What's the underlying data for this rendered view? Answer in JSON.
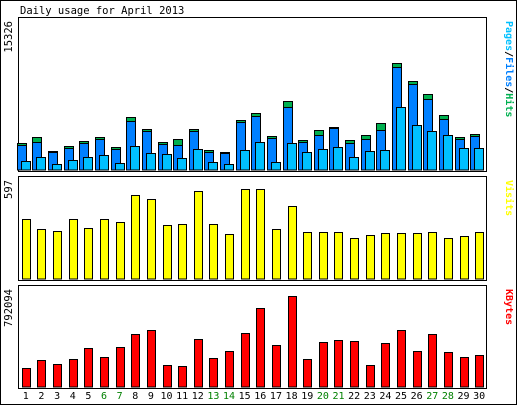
{
  "title": "Daily usage for April 2013",
  "colors": {
    "border": "#000000",
    "panel_bg": "#ffffff",
    "hits": "#00b050",
    "files": "#0080ff",
    "pages": "#00c0ff",
    "visits": "#ffff00",
    "kbytes": "#ff0000",
    "weekend_label": "#008000",
    "weekday_label": "#000000"
  },
  "chart_data": [
    {
      "type": "bar",
      "panel": "hits-files-pages",
      "ymax_label": "15326",
      "ylim": [
        0,
        15326
      ],
      "legend": [
        {
          "text": "Pages",
          "color": "#00c0ff"
        },
        {
          "text": "/",
          "color": "#000000"
        },
        {
          "text": "Files",
          "color": "#0080ff"
        },
        {
          "text": "/",
          "color": "#000000"
        },
        {
          "text": "Hits",
          "color": "#00b050"
        }
      ],
      "categories": [
        "1",
        "2",
        "3",
        "4",
        "5",
        "6",
        "7",
        "8",
        "9",
        "10",
        "11",
        "12",
        "13",
        "14",
        "15",
        "16",
        "17",
        "18",
        "19",
        "20",
        "21",
        "22",
        "23",
        "24",
        "25",
        "26",
        "27",
        "28",
        "29",
        "30"
      ],
      "series": [
        {
          "name": "Hits",
          "values": [
            2950,
            3520,
            2050,
            2580,
            3130,
            3560,
            2430,
            5770,
            4390,
            3030,
            3350,
            4470,
            2130,
            1990,
            5400,
            6150,
            3650,
            7420,
            3230,
            4290,
            4590,
            3250,
            3820,
            5040,
            11590,
            9600,
            8240,
            5970,
            3590,
            3840
          ]
        },
        {
          "name": "Files",
          "values": [
            2720,
            2990,
            1970,
            2360,
            2930,
            3310,
            2290,
            5240,
            4160,
            2800,
            2710,
            4190,
            1980,
            1810,
            5160,
            5860,
            3460,
            6850,
            2970,
            3800,
            4480,
            2950,
            3350,
            4330,
            11130,
            9250,
            7630,
            5540,
            3350,
            3710
          ]
        },
        {
          "name": "Pages",
          "values": [
            980,
            1420,
            670,
            1060,
            1400,
            1660,
            780,
            2640,
            1820,
            1680,
            1340,
            2300,
            820,
            650,
            2180,
            3020,
            910,
            2950,
            1980,
            2300,
            2460,
            1430,
            2010,
            2190,
            6760,
            4840,
            4170,
            3800,
            2340,
            2340
          ]
        }
      ]
    },
    {
      "type": "bar",
      "panel": "visits",
      "ymax_label": "597",
      "ylim": [
        0,
        597
      ],
      "legend": [
        {
          "text": "Visits",
          "color": "#ffff00"
        }
      ],
      "categories": [
        "1",
        "2",
        "3",
        "4",
        "5",
        "6",
        "7",
        "8",
        "9",
        "10",
        "11",
        "12",
        "13",
        "14",
        "15",
        "16",
        "17",
        "18",
        "19",
        "20",
        "21",
        "22",
        "23",
        "24",
        "25",
        "26",
        "27",
        "28",
        "29",
        "30"
      ],
      "series": [
        {
          "name": "Visits",
          "values": [
            388,
            322,
            312,
            388,
            331,
            391,
            370,
            543,
            521,
            350,
            354,
            574,
            358,
            291,
            581,
            581,
            324,
            475,
            303,
            303,
            303,
            264,
            283,
            296,
            296,
            296,
            307,
            269,
            281,
            308
          ]
        }
      ]
    },
    {
      "type": "bar",
      "panel": "kbytes",
      "ymax_label": "792094",
      "ylim": [
        0,
        792094
      ],
      "legend": [
        {
          "text": "KBytes",
          "color": "#ff0000"
        }
      ],
      "categories": [
        "1",
        "2",
        "3",
        "4",
        "5",
        "6",
        "7",
        "8",
        "9",
        "10",
        "11",
        "12",
        "13",
        "14",
        "15",
        "16",
        "17",
        "18",
        "19",
        "20",
        "21",
        "22",
        "23",
        "24",
        "25",
        "26",
        "27",
        "28",
        "29",
        "30"
      ],
      "series": [
        {
          "name": "KBytes",
          "values": [
            165300,
            233000,
            203000,
            240000,
            338000,
            263000,
            347000,
            465000,
            495000,
            195000,
            180000,
            420000,
            255000,
            315000,
            473000,
            690000,
            367000,
            792094,
            240000,
            390000,
            413000,
            398000,
            195000,
            383000,
            495000,
            315000,
            465000,
            308000,
            263000,
            278000
          ]
        }
      ]
    }
  ],
  "x_labels": [
    {
      "text": "1",
      "weekend": false
    },
    {
      "text": "2",
      "weekend": false
    },
    {
      "text": "3",
      "weekend": false
    },
    {
      "text": "4",
      "weekend": false
    },
    {
      "text": "5",
      "weekend": false
    },
    {
      "text": "6",
      "weekend": true
    },
    {
      "text": "7",
      "weekend": true
    },
    {
      "text": "8",
      "weekend": false
    },
    {
      "text": "9",
      "weekend": false
    },
    {
      "text": "10",
      "weekend": false
    },
    {
      "text": "11",
      "weekend": false
    },
    {
      "text": "12",
      "weekend": false
    },
    {
      "text": "13",
      "weekend": true
    },
    {
      "text": "14",
      "weekend": true
    },
    {
      "text": "15",
      "weekend": false
    },
    {
      "text": "16",
      "weekend": false
    },
    {
      "text": "17",
      "weekend": false
    },
    {
      "text": "18",
      "weekend": false
    },
    {
      "text": "19",
      "weekend": false
    },
    {
      "text": "20",
      "weekend": true
    },
    {
      "text": "21",
      "weekend": true
    },
    {
      "text": "22",
      "weekend": false
    },
    {
      "text": "23",
      "weekend": false
    },
    {
      "text": "24",
      "weekend": false
    },
    {
      "text": "25",
      "weekend": false
    },
    {
      "text": "26",
      "weekend": false
    },
    {
      "text": "27",
      "weekend": true
    },
    {
      "text": "28",
      "weekend": true
    },
    {
      "text": "29",
      "weekend": false
    },
    {
      "text": "30",
      "weekend": false
    }
  ]
}
